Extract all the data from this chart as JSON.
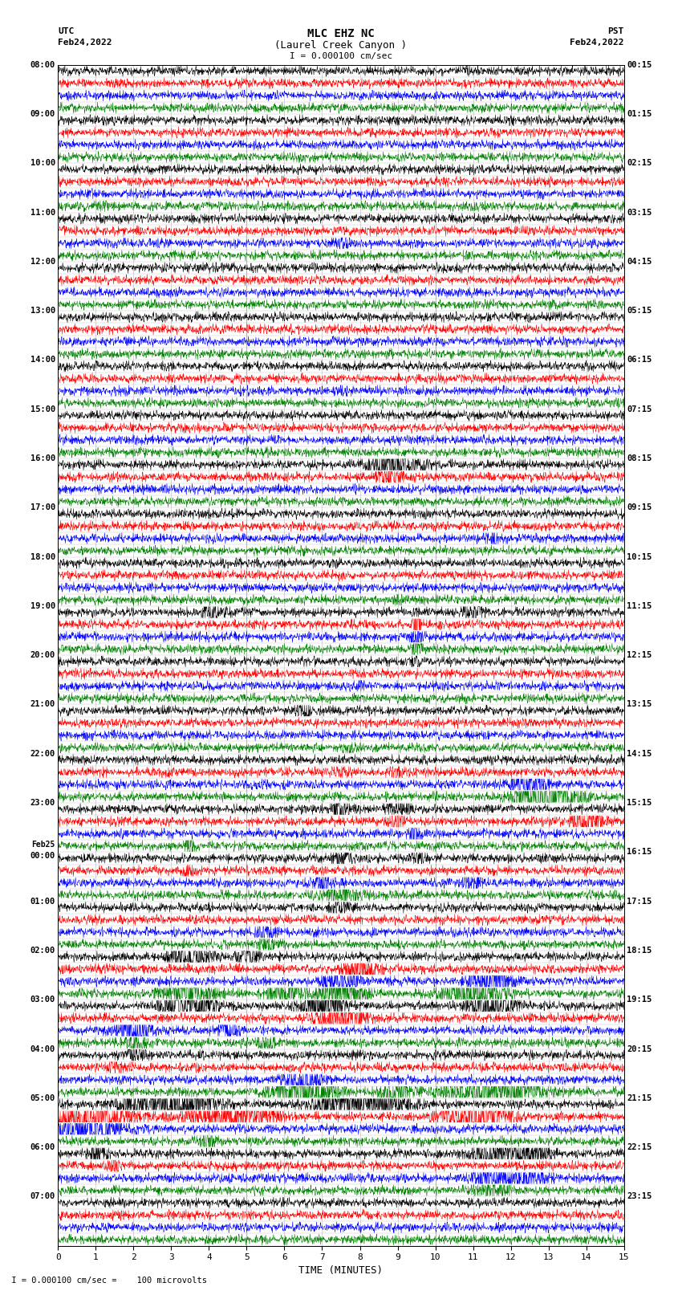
{
  "title_line1": "MLC EHZ NC",
  "title_line2": "(Laurel Creek Canyon )",
  "scale_text": "I = 0.000100 cm/sec",
  "left_header_line1": "UTC",
  "left_header_line2": "Feb24,2022",
  "right_header_line1": "PST",
  "right_header_line2": "Feb24,2022",
  "xlabel": "TIME (MINUTES)",
  "footnote": " I = 0.000100 cm/sec =    100 microvolts",
  "utc_labels": [
    "08:00",
    "",
    "",
    "",
    "09:00",
    "",
    "",
    "",
    "10:00",
    "",
    "",
    "",
    "11:00",
    "",
    "",
    "",
    "12:00",
    "",
    "",
    "",
    "13:00",
    "",
    "",
    "",
    "14:00",
    "",
    "",
    "",
    "15:00",
    "",
    "",
    "",
    "16:00",
    "",
    "",
    "",
    "17:00",
    "",
    "",
    "",
    "18:00",
    "",
    "",
    "",
    "19:00",
    "",
    "",
    "",
    "20:00",
    "",
    "",
    "",
    "21:00",
    "",
    "",
    "",
    "22:00",
    "",
    "",
    "",
    "23:00",
    "",
    "",
    "",
    "Feb25\n00:00",
    "",
    "",
    "",
    "01:00",
    "",
    "",
    "",
    "02:00",
    "",
    "",
    "",
    "03:00",
    "",
    "",
    "",
    "04:00",
    "",
    "",
    "",
    "05:00",
    "",
    "",
    "",
    "06:00",
    "",
    "",
    "",
    "07:00",
    "",
    "",
    ""
  ],
  "pst_labels": [
    "00:15",
    "",
    "",
    "",
    "01:15",
    "",
    "",
    "",
    "02:15",
    "",
    "",
    "",
    "03:15",
    "",
    "",
    "",
    "04:15",
    "",
    "",
    "",
    "05:15",
    "",
    "",
    "",
    "06:15",
    "",
    "",
    "",
    "07:15",
    "",
    "",
    "",
    "08:15",
    "",
    "",
    "",
    "09:15",
    "",
    "",
    "",
    "10:15",
    "",
    "",
    "",
    "11:15",
    "",
    "",
    "",
    "12:15",
    "",
    "",
    "",
    "13:15",
    "",
    "",
    "",
    "14:15",
    "",
    "",
    "",
    "15:15",
    "",
    "",
    "",
    "16:15",
    "",
    "",
    "",
    "17:15",
    "",
    "",
    "",
    "18:15",
    "",
    "",
    "",
    "19:15",
    "",
    "",
    "",
    "20:15",
    "",
    "",
    "",
    "21:15",
    "",
    "",
    "",
    "22:15",
    "",
    "",
    "",
    "23:15",
    "",
    "",
    ""
  ],
  "n_rows": 96,
  "colors_cycle": [
    "black",
    "red",
    "blue",
    "green"
  ],
  "bg_color": "#ffffff",
  "grid_color": "#999999",
  "xmin": 0,
  "xmax": 15,
  "xticks": [
    0,
    1,
    2,
    3,
    4,
    5,
    6,
    7,
    8,
    9,
    10,
    11,
    12,
    13,
    14,
    15
  ],
  "figsize": [
    8.5,
    16.13
  ],
  "dpi": 100,
  "noise_level": 0.18,
  "special_events": [
    {
      "row": 10,
      "minute": 0.8,
      "amp": 1.5,
      "dur": 0.4
    },
    {
      "row": 11,
      "minute": 1.2,
      "amp": 1.2,
      "dur": 0.3
    },
    {
      "row": 14,
      "minute": 7.5,
      "amp": 2.0,
      "dur": 0.5
    },
    {
      "row": 26,
      "minute": 7.5,
      "amp": 1.5,
      "dur": 0.3
    },
    {
      "row": 31,
      "minute": 5.5,
      "amp": 1.8,
      "dur": 0.3
    },
    {
      "row": 32,
      "minute": 9.0,
      "amp": 8.0,
      "dur": 1.2
    },
    {
      "row": 33,
      "minute": 8.8,
      "amp": 3.0,
      "dur": 0.8
    },
    {
      "row": 38,
      "minute": 11.5,
      "amp": 2.0,
      "dur": 0.4
    },
    {
      "row": 39,
      "minute": 6.5,
      "amp": 1.5,
      "dur": 0.3
    },
    {
      "row": 43,
      "minute": 9.0,
      "amp": 1.5,
      "dur": 0.3
    },
    {
      "row": 44,
      "minute": 4.2,
      "amp": 5.0,
      "dur": 0.5
    },
    {
      "row": 44,
      "minute": 11.0,
      "amp": 4.0,
      "dur": 0.5
    },
    {
      "row": 45,
      "minute": 9.5,
      "amp": 18.0,
      "dur": 0.15
    },
    {
      "row": 46,
      "minute": 9.5,
      "amp": 5.0,
      "dur": 0.3
    },
    {
      "row": 47,
      "minute": 9.5,
      "amp": 3.0,
      "dur": 0.3
    },
    {
      "row": 48,
      "minute": 9.5,
      "amp": 2.0,
      "dur": 0.3
    },
    {
      "row": 50,
      "minute": 8.0,
      "amp": 2.0,
      "dur": 0.3
    },
    {
      "row": 52,
      "minute": 6.5,
      "amp": 2.5,
      "dur": 0.5
    },
    {
      "row": 55,
      "minute": 7.8,
      "amp": 2.5,
      "dur": 0.3
    },
    {
      "row": 57,
      "minute": 7.5,
      "amp": 2.0,
      "dur": 0.5
    },
    {
      "row": 57,
      "minute": 9.0,
      "amp": 2.0,
      "dur": 0.5
    },
    {
      "row": 58,
      "minute": 12.5,
      "amp": 6.0,
      "dur": 0.8
    },
    {
      "row": 59,
      "minute": 13.0,
      "amp": 8.0,
      "dur": 1.5
    },
    {
      "row": 60,
      "minute": 7.5,
      "amp": 3.0,
      "dur": 0.6
    },
    {
      "row": 60,
      "minute": 9.0,
      "amp": 3.0,
      "dur": 0.6
    },
    {
      "row": 61,
      "minute": 9.0,
      "amp": 3.0,
      "dur": 0.5
    },
    {
      "row": 61,
      "minute": 14.0,
      "amp": 4.0,
      "dur": 0.8
    },
    {
      "row": 62,
      "minute": 9.5,
      "amp": 3.0,
      "dur": 0.4
    },
    {
      "row": 63,
      "minute": 3.5,
      "amp": 18.0,
      "dur": 0.15
    },
    {
      "row": 64,
      "minute": 7.5,
      "amp": 3.0,
      "dur": 0.6
    },
    {
      "row": 64,
      "minute": 9.5,
      "amp": 2.5,
      "dur": 0.4
    },
    {
      "row": 65,
      "minute": 3.5,
      "amp": 2.5,
      "dur": 0.4
    },
    {
      "row": 66,
      "minute": 7.0,
      "amp": 3.0,
      "dur": 0.6
    },
    {
      "row": 66,
      "minute": 11.0,
      "amp": 3.0,
      "dur": 0.4
    },
    {
      "row": 67,
      "minute": 7.5,
      "amp": 4.0,
      "dur": 1.0
    },
    {
      "row": 68,
      "minute": 7.5,
      "amp": 3.0,
      "dur": 0.5
    },
    {
      "row": 70,
      "minute": 5.5,
      "amp": 3.0,
      "dur": 0.5
    },
    {
      "row": 71,
      "minute": 5.5,
      "amp": 3.0,
      "dur": 0.5
    },
    {
      "row": 72,
      "minute": 3.5,
      "amp": 6.0,
      "dur": 1.0
    },
    {
      "row": 72,
      "minute": 5.0,
      "amp": 4.0,
      "dur": 0.5
    },
    {
      "row": 73,
      "minute": 8.0,
      "amp": 6.0,
      "dur": 0.8
    },
    {
      "row": 74,
      "minute": 7.5,
      "amp": 5.0,
      "dur": 0.8
    },
    {
      "row": 74,
      "minute": 11.5,
      "amp": 6.0,
      "dur": 1.0
    },
    {
      "row": 75,
      "minute": 3.5,
      "amp": 8.0,
      "dur": 1.2
    },
    {
      "row": 75,
      "minute": 6.0,
      "amp": 5.0,
      "dur": 0.8
    },
    {
      "row": 75,
      "minute": 7.5,
      "amp": 6.0,
      "dur": 1.2
    },
    {
      "row": 75,
      "minute": 11.0,
      "amp": 7.0,
      "dur": 1.5
    },
    {
      "row": 76,
      "minute": 3.5,
      "amp": 7.0,
      "dur": 1.2
    },
    {
      "row": 76,
      "minute": 7.0,
      "amp": 6.0,
      "dur": 1.2
    },
    {
      "row": 76,
      "minute": 11.5,
      "amp": 6.0,
      "dur": 1.2
    },
    {
      "row": 77,
      "minute": 7.5,
      "amp": 6.0,
      "dur": 1.2
    },
    {
      "row": 78,
      "minute": 2.0,
      "amp": 8.0,
      "dur": 0.8
    },
    {
      "row": 78,
      "minute": 4.5,
      "amp": 4.0,
      "dur": 0.5
    },
    {
      "row": 79,
      "minute": 2.0,
      "amp": 3.0,
      "dur": 0.5
    },
    {
      "row": 79,
      "minute": 5.5,
      "amp": 3.0,
      "dur": 0.5
    },
    {
      "row": 80,
      "minute": 2.0,
      "amp": 3.0,
      "dur": 0.5
    },
    {
      "row": 81,
      "minute": 1.5,
      "amp": 3.0,
      "dur": 0.4
    },
    {
      "row": 82,
      "minute": 6.5,
      "amp": 4.0,
      "dur": 1.0
    },
    {
      "row": 83,
      "minute": 6.5,
      "amp": 6.0,
      "dur": 1.5
    },
    {
      "row": 83,
      "minute": 9.0,
      "amp": 4.0,
      "dur": 1.0
    },
    {
      "row": 83,
      "minute": 11.5,
      "amp": 8.0,
      "dur": 2.0
    },
    {
      "row": 84,
      "minute": 3.0,
      "amp": 8.0,
      "dur": 2.0
    },
    {
      "row": 84,
      "minute": 8.0,
      "amp": 8.0,
      "dur": 2.0
    },
    {
      "row": 85,
      "minute": 0.5,
      "amp": 7.0,
      "dur": 2.5
    },
    {
      "row": 85,
      "minute": 4.5,
      "amp": 6.0,
      "dur": 2.0
    },
    {
      "row": 85,
      "minute": 11.0,
      "amp": 8.0,
      "dur": 1.5
    },
    {
      "row": 86,
      "minute": 0.5,
      "amp": 6.0,
      "dur": 2.0
    },
    {
      "row": 87,
      "minute": 4.0,
      "amp": 3.0,
      "dur": 0.5
    },
    {
      "row": 88,
      "minute": 1.0,
      "amp": 5.0,
      "dur": 0.5
    },
    {
      "row": 88,
      "minute": 11.5,
      "amp": 5.0,
      "dur": 1.2
    },
    {
      "row": 88,
      "minute": 12.5,
      "amp": 5.0,
      "dur": 1.0
    },
    {
      "row": 89,
      "minute": 1.5,
      "amp": 3.0,
      "dur": 0.4
    },
    {
      "row": 90,
      "minute": 11.5,
      "amp": 4.0,
      "dur": 1.0
    },
    {
      "row": 90,
      "minute": 12.5,
      "amp": 4.0,
      "dur": 1.0
    },
    {
      "row": 91,
      "minute": 11.5,
      "amp": 3.0,
      "dur": 0.8
    }
  ]
}
